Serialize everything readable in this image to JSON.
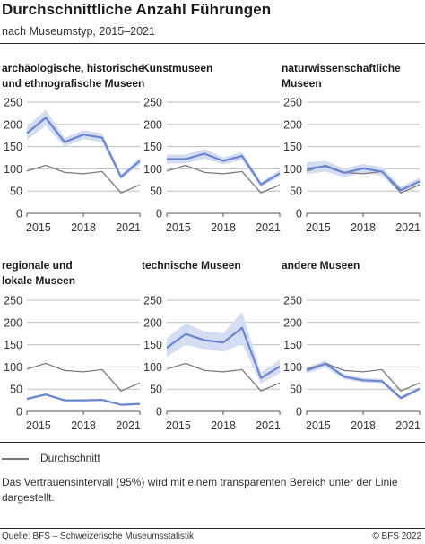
{
  "header": {
    "title": "Durchschnittliche Anzahl Führungen",
    "subtitle": "nach Museumstyp, 2015–2021"
  },
  "legend": {
    "label": "Durchschnitt"
  },
  "note": "Das Vertrauensintervall (95%) wird mit einem transparenten Bereich unter der Linie dargestellt.",
  "footer": {
    "source": "Quelle: BFS – Schweizerische Museumsstatistik",
    "copyright": "© BFS 2022"
  },
  "colors": {
    "series": "#6a86cf",
    "band": "#d5ddf2",
    "average": "#7a7a7a",
    "axis": "#bdbdbd",
    "text": "#333333"
  },
  "chart_data": [
    {
      "type": "line",
      "title_lines": [
        "archäologische, historische",
        "und ethnografische Museen"
      ],
      "x": [
        2015,
        2016,
        2017,
        2018,
        2019,
        2020,
        2021
      ],
      "xticks": [
        "2015",
        "2018",
        "2021"
      ],
      "yticks": [
        "0",
        "50",
        "100",
        "150",
        "200",
        "250"
      ],
      "ylim": [
        0,
        250
      ],
      "series": [
        {
          "values": [
            180,
            215,
            160,
            177,
            170,
            82,
            118
          ],
          "lower": [
            165,
            197,
            150,
            167,
            160,
            76,
            110
          ],
          "upper": [
            195,
            233,
            170,
            187,
            180,
            88,
            126
          ]
        },
        {
          "name": "Durchschnitt",
          "values": [
            95,
            108,
            92,
            89,
            94,
            46,
            64
          ]
        }
      ]
    },
    {
      "type": "line",
      "title_lines": [
        "Kunstmuseen"
      ],
      "x": [
        2015,
        2016,
        2017,
        2018,
        2019,
        2020,
        2021
      ],
      "xticks": [
        "2015",
        "2018",
        "2021"
      ],
      "yticks": [
        "0",
        "50",
        "100",
        "150",
        "200",
        "250"
      ],
      "ylim": [
        0,
        250
      ],
      "series": [
        {
          "values": [
            122,
            122,
            134,
            118,
            129,
            65,
            90
          ],
          "lower": [
            112,
            112,
            123,
            110,
            120,
            59,
            83
          ],
          "upper": [
            132,
            132,
            145,
            126,
            138,
            71,
            97
          ]
        },
        {
          "name": "Durchschnitt",
          "values": [
            95,
            108,
            92,
            89,
            94,
            46,
            64
          ]
        }
      ]
    },
    {
      "type": "line",
      "title_lines": [
        "naturwissenschaftliche",
        "Museen"
      ],
      "x": [
        2015,
        2016,
        2017,
        2018,
        2019,
        2020,
        2021
      ],
      "xticks": [
        "2015",
        "2018",
        "2021"
      ],
      "yticks": [
        "0",
        "50",
        "100",
        "150",
        "200",
        "250"
      ],
      "ylim": [
        0,
        250
      ],
      "series": [
        {
          "values": [
            100,
            106,
            91,
            101,
            94,
            52,
            72
          ],
          "lower": [
            88,
            94,
            81,
            91,
            84,
            44,
            64
          ],
          "upper": [
            115,
            118,
            101,
            111,
            104,
            60,
            80
          ]
        },
        {
          "name": "Durchschnitt",
          "values": [
            95,
            108,
            92,
            89,
            94,
            46,
            64
          ]
        }
      ]
    },
    {
      "type": "line",
      "title_lines": [
        "regionale und",
        "lokale Museen"
      ],
      "x": [
        2015,
        2016,
        2017,
        2018,
        2019,
        2020,
        2021
      ],
      "xticks": [
        "2015",
        "2018",
        "2021"
      ],
      "yticks": [
        "0",
        "50",
        "100",
        "150",
        "200",
        "250"
      ],
      "ylim": [
        0,
        250
      ],
      "series": [
        {
          "values": [
            28,
            38,
            25,
            25,
            26,
            15,
            17
          ],
          "lower": [
            25,
            35,
            23,
            23,
            24,
            13,
            15
          ],
          "upper": [
            31,
            41,
            27,
            27,
            28,
            17,
            19
          ]
        },
        {
          "name": "Durchschnitt",
          "values": [
            95,
            108,
            92,
            89,
            94,
            46,
            64
          ]
        }
      ]
    },
    {
      "type": "line",
      "title_lines": [
        "technische Museen"
      ],
      "x": [
        2015,
        2016,
        2017,
        2018,
        2019,
        2020,
        2021
      ],
      "xticks": [
        "2015",
        "2018",
        "2021"
      ],
      "yticks": [
        "0",
        "50",
        "100",
        "150",
        "200",
        "250"
      ],
      "ylim": [
        0,
        250
      ],
      "series": [
        {
          "values": [
            143,
            174,
            160,
            155,
            188,
            75,
            101
          ],
          "lower": [
            122,
            150,
            140,
            134,
            152,
            62,
            86
          ],
          "upper": [
            165,
            198,
            180,
            176,
            224,
            88,
            116
          ]
        },
        {
          "name": "Durchschnitt",
          "values": [
            95,
            108,
            92,
            89,
            94,
            46,
            64
          ]
        }
      ]
    },
    {
      "type": "line",
      "title_lines": [
        "andere Museen"
      ],
      "x": [
        2015,
        2016,
        2017,
        2018,
        2019,
        2020,
        2021
      ],
      "xticks": [
        "2015",
        "2018",
        "2021"
      ],
      "yticks": [
        "0",
        "50",
        "100",
        "150",
        "200",
        "250"
      ],
      "ylim": [
        0,
        250
      ],
      "series": [
        {
          "values": [
            92,
            107,
            78,
            70,
            68,
            30,
            51
          ],
          "lower": [
            85,
            99,
            72,
            65,
            63,
            26,
            47
          ],
          "upper": [
            99,
            115,
            84,
            75,
            73,
            34,
            55
          ]
        },
        {
          "name": "Durchschnitt",
          "values": [
            95,
            108,
            92,
            89,
            94,
            46,
            64
          ]
        }
      ]
    }
  ]
}
